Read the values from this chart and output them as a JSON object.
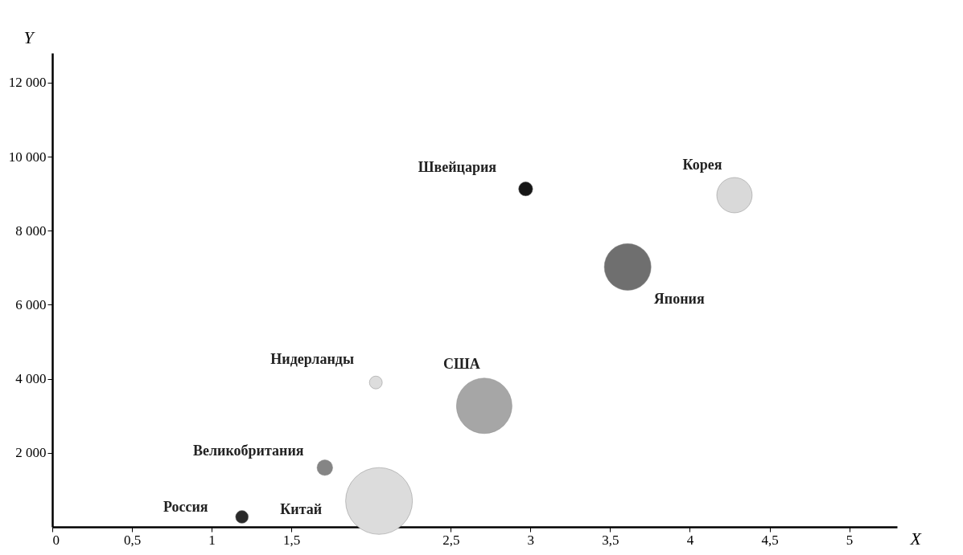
{
  "chart_data": {
    "type": "bubble",
    "xlabel": "X",
    "ylabel": "Y",
    "xlim": [
      0,
      5.3
    ],
    "ylim": [
      0,
      12800
    ],
    "xticks": [
      {
        "value": 0,
        "label": "0"
      },
      {
        "value": 0.5,
        "label": "0,5"
      },
      {
        "value": 1,
        "label": "1"
      },
      {
        "value": 1.5,
        "label": "1,5"
      },
      {
        "value": 2,
        "label": null
      },
      {
        "value": 2.5,
        "label": "2,5"
      },
      {
        "value": 3,
        "label": "3"
      },
      {
        "value": 3.5,
        "label": "3,5"
      },
      {
        "value": 4,
        "label": "4"
      },
      {
        "value": 4.5,
        "label": "4,5"
      },
      {
        "value": 5,
        "label": "5"
      }
    ],
    "yticks": [
      {
        "value": 2000,
        "label": "2 000"
      },
      {
        "value": 4000,
        "label": "4 000"
      },
      {
        "value": 6000,
        "label": "6 000"
      },
      {
        "value": 8000,
        "label": "8 000"
      },
      {
        "value": 10000,
        "label": "10 000"
      },
      {
        "value": 12000,
        "label": "12 000"
      }
    ],
    "grid": false,
    "legend": false,
    "series": [
      {
        "name": "Россия",
        "color": "#2a2a2a",
        "x": [
          1.19
        ],
        "values": [
          270
        ],
        "sizes": [
          0.037
        ]
      },
      {
        "name": "Великобритания",
        "color": "#858585",
        "x": [
          1.71
        ],
        "values": [
          1600
        ],
        "sizes": [
          0.055
        ]
      },
      {
        "name": "Китай",
        "color": "#dcdcdc",
        "x": [
          2.05
        ],
        "values": [
          700
        ],
        "sizes": [
          1
        ]
      },
      {
        "name": "Нидерланды",
        "color": "#dddddd",
        "x": [
          2.03
        ],
        "values": [
          3900
        ],
        "sizes": [
          0.037
        ]
      },
      {
        "name": "США",
        "color": "#a6a6a6",
        "x": [
          2.71
        ],
        "values": [
          3270
        ],
        "sizes": [
          0.69
        ]
      },
      {
        "name": "Швейцария",
        "color": "#161616",
        "x": [
          2.97
        ],
        "values": [
          9130
        ],
        "sizes": [
          0.045
        ]
      },
      {
        "name": "Япония",
        "color": "#6f6f6f",
        "x": [
          3.61
        ],
        "values": [
          7020
        ],
        "sizes": [
          0.49
        ]
      },
      {
        "name": "Корея",
        "color": "#d9d9d9",
        "x": [
          4.28
        ],
        "values": [
          8960
        ],
        "sizes": [
          0.28
        ]
      }
    ]
  }
}
